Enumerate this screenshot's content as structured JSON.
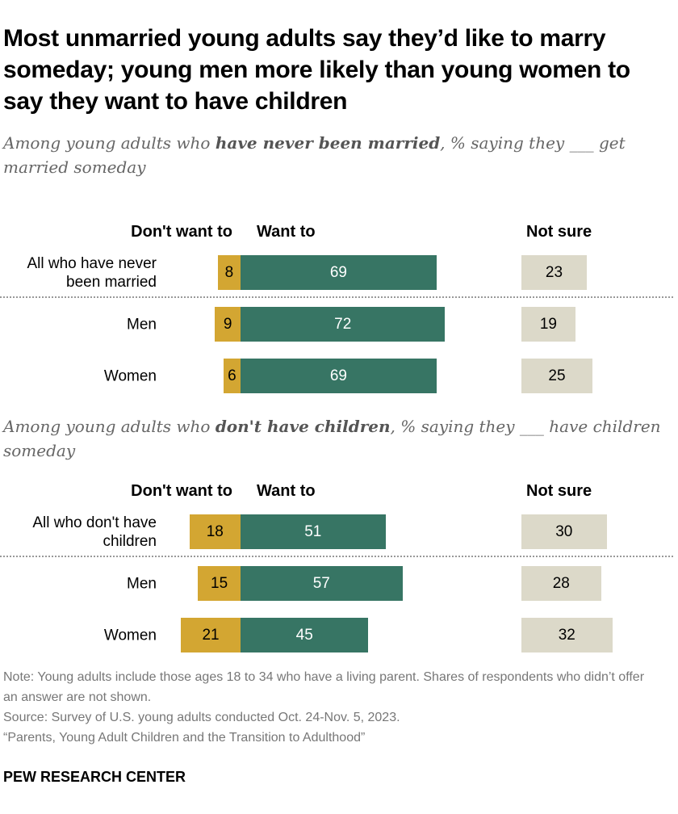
{
  "title": "Most unmarried young adults say they’d like to marry someday; young men more likely than young women to say they want to have children",
  "colors": {
    "dont_want": "#d3a632",
    "want": "#377564",
    "not_sure": "#dcd9c9"
  },
  "chart_data": [
    {
      "type": "bar",
      "subtitle": {
        "pre": "Among young adults who ",
        "bold": "have never been married",
        "post": ", % saying they ___ get married someday"
      },
      "column_headers": {
        "dont_want": "Don't want to",
        "want": "Want to",
        "not_sure": "Not sure"
      },
      "categories": [
        "All who have never been married",
        "Men",
        "Women"
      ],
      "series": [
        {
          "name": "Don't want to",
          "values": [
            8,
            9,
            6
          ]
        },
        {
          "name": "Want to",
          "values": [
            69,
            72,
            69
          ]
        },
        {
          "name": "Not sure",
          "values": [
            23,
            19,
            25
          ]
        }
      ]
    },
    {
      "type": "bar",
      "subtitle": {
        "pre": "Among young adults who ",
        "bold": "don't have children",
        "post": ", % saying they ___ have children someday"
      },
      "column_headers": {
        "dont_want": "Don't want to",
        "want": "Want to",
        "not_sure": "Not sure"
      },
      "categories": [
        "All who don't have children",
        "Men",
        "Women"
      ],
      "series": [
        {
          "name": "Don't want to",
          "values": [
            18,
            15,
            21
          ]
        },
        {
          "name": "Want to",
          "values": [
            51,
            57,
            45
          ]
        },
        {
          "name": "Not sure",
          "values": [
            30,
            28,
            32
          ]
        }
      ]
    }
  ],
  "note": "Note: Young adults include those ages 18 to 34 who have a living parent. Shares of respondents who didn’t offer an answer are not shown.",
  "source": "Source: Survey of U.S. young adults conducted Oct. 24-Nov. 5, 2023.",
  "report": "“Parents, Young Adult Children and the Transition to Adulthood”",
  "brand": "PEW RESEARCH CENTER"
}
